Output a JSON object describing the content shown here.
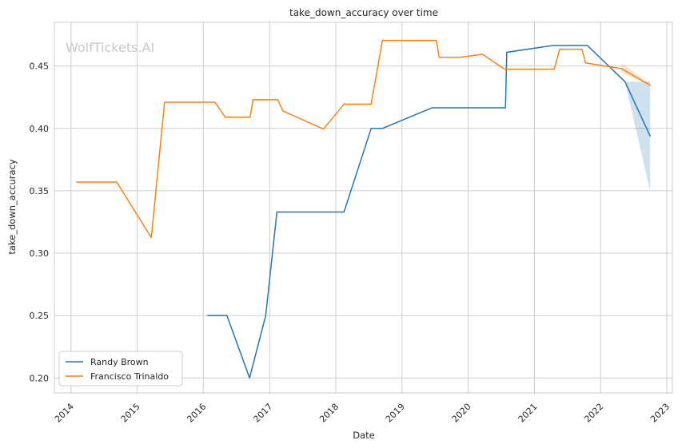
{
  "chart_data": {
    "type": "line",
    "title": "take_down_accuracy over time",
    "xlabel": "Date",
    "ylabel": "take_down_accuracy",
    "watermark": "WolfTickets.AI",
    "xlim": [
      "2013-10-01",
      "2023-02-01"
    ],
    "ylim": [
      0.188,
      0.485
    ],
    "x_ticks": [
      "2014",
      "2015",
      "2016",
      "2017",
      "2018",
      "2019",
      "2020",
      "2021",
      "2022",
      "2023"
    ],
    "y_ticks": [
      0.2,
      0.25,
      0.3,
      0.35,
      0.4,
      0.45
    ],
    "y_tick_labels": [
      "0.20",
      "0.25",
      "0.30",
      "0.35",
      "0.40",
      "0.45"
    ],
    "grid": true,
    "legend_position": "lower-left",
    "colors": {
      "series_1": "#1f77b4",
      "series_2": "#ff7f0e"
    },
    "series": [
      {
        "name": "Randy Brown",
        "color": "#1f77b4",
        "points": [
          [
            "2016-01-25",
            0.25
          ],
          [
            "2016-05-10",
            0.25
          ],
          [
            "2016-09-12",
            0.2
          ],
          [
            "2016-12-10",
            0.25
          ],
          [
            "2017-02-10",
            0.333
          ],
          [
            "2018-02-15",
            0.333
          ],
          [
            "2018-07-15",
            0.4
          ],
          [
            "2018-09-15",
            0.4
          ],
          [
            "2019-06-15",
            0.4165
          ],
          [
            "2020-07-25",
            0.4165
          ],
          [
            "2020-08-01",
            0.461
          ],
          [
            "2021-04-15",
            0.4665
          ],
          [
            "2021-10-20",
            0.4665
          ],
          [
            "2022-05-15",
            0.4375
          ],
          [
            "2022-10-01",
            0.394
          ]
        ],
        "band": {
          "x": [
            "2022-05-15",
            "2022-10-01"
          ],
          "lower": [
            0.4375,
            0.35
          ],
          "upper": [
            0.4375,
            0.4375
          ]
        }
      },
      {
        "name": "Francisco Trinaldo",
        "color": "#ff7f0e",
        "points": [
          [
            "2014-02-01",
            0.357
          ],
          [
            "2014-09-10",
            0.357
          ],
          [
            "2015-03-20",
            0.3125
          ],
          [
            "2015-06-01",
            0.421
          ],
          [
            "2016-03-05",
            0.421
          ],
          [
            "2016-05-01",
            0.409
          ],
          [
            "2016-09-15",
            0.409
          ],
          [
            "2016-10-01",
            0.423
          ],
          [
            "2017-02-15",
            0.423
          ],
          [
            "2017-03-15",
            0.414
          ],
          [
            "2017-10-25",
            0.3995
          ],
          [
            "2018-02-15",
            0.4195
          ],
          [
            "2018-07-15",
            0.4195
          ],
          [
            "2018-09-15",
            0.4705
          ],
          [
            "2019-07-10",
            0.4705
          ],
          [
            "2019-07-25",
            0.457
          ],
          [
            "2019-11-20",
            0.457
          ],
          [
            "2020-03-20",
            0.4595
          ],
          [
            "2020-07-20",
            0.4475
          ],
          [
            "2021-04-20",
            0.4475
          ],
          [
            "2021-05-20",
            0.4635
          ],
          [
            "2021-09-20",
            0.4635
          ],
          [
            "2021-10-10",
            0.4525
          ],
          [
            "2022-04-25",
            0.448
          ],
          [
            "2022-10-01",
            0.4345
          ]
        ],
        "band": {
          "x": [
            "2022-04-25",
            "2022-10-01"
          ],
          "lower": [
            0.445,
            0.4345
          ],
          "upper": [
            0.4525,
            0.436
          ]
        }
      }
    ]
  }
}
